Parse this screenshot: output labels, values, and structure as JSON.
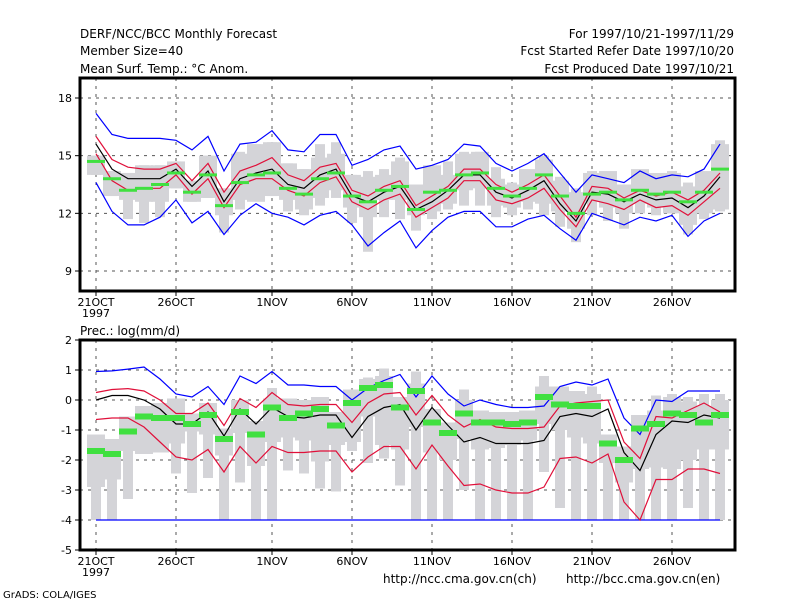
{
  "header": {
    "title": "DERF/NCC/BCC Monthly Forecast",
    "member_size": "Member Size=40",
    "variable": "Mean Surf. Temp.: °C Anom.",
    "period": "For 1997/10/21-1997/11/29",
    "started": "Fcst Started Refer Date 1997/10/20",
    "produced": "Fcst Produced Date 1997/10/21"
  },
  "footer": {
    "url_ch": "http://ncc.cma.gov.cn(ch)",
    "url_en": "http://bcc.cma.gov.cn(en)",
    "credit": "GrADS: COLA/IGES"
  },
  "colors": {
    "envelope": "#0000ff",
    "spread": "#e0103a",
    "mean": "#000000",
    "median": "#40e040",
    "box": "#d4d4d8",
    "grid": "#555555"
  },
  "chart_data": [
    {
      "type": "line",
      "title": "Mean Surf. Temp.: °C Anom.",
      "xlabel": "",
      "ylabel": "°C",
      "ylim": [
        8,
        19
      ],
      "yticks": [
        9,
        12,
        15,
        18
      ],
      "xtick_labels": [
        "21OCT",
        "26OCT",
        "1NOV",
        "6NOV",
        "11NOV",
        "16NOV",
        "21NOV",
        "26NOV"
      ],
      "xtick_days": [
        0,
        5,
        11,
        16,
        21,
        26,
        31,
        36
      ],
      "year_label": "1997",
      "grid": true,
      "days": 40,
      "series": [
        {
          "name": "max",
          "color_key": "envelope",
          "values": [
            17.2,
            16.1,
            15.9,
            15.9,
            15.9,
            15.8,
            15.3,
            16.0,
            14.2,
            15.6,
            15.7,
            16.3,
            15.3,
            15.2,
            16.1,
            16.1,
            14.5,
            14.8,
            15.3,
            15.5,
            14.3,
            14.5,
            14.8,
            15.6,
            15.5,
            14.6,
            14.2,
            14.6,
            15.1,
            14.1,
            13.1,
            14.0,
            13.8,
            13.6,
            14.2,
            13.8,
            14.0,
            13.9,
            14.3,
            15.6
          ]
        },
        {
          "name": "mean_plus_sd",
          "color_key": "spread",
          "values": [
            16.0,
            14.8,
            14.4,
            14.3,
            14.3,
            14.6,
            13.7,
            14.6,
            13.1,
            14.2,
            14.5,
            14.9,
            14.0,
            13.7,
            14.4,
            14.6,
            13.2,
            12.9,
            13.4,
            13.7,
            12.4,
            12.9,
            13.4,
            14.3,
            14.3,
            13.5,
            13.1,
            13.5,
            14.0,
            12.9,
            11.8,
            13.4,
            13.3,
            12.8,
            13.2,
            12.9,
            13.1,
            12.7,
            13.2,
            14.1
          ]
        },
        {
          "name": "mean",
          "color_key": "mean",
          "values": [
            15.6,
            14.3,
            13.8,
            13.8,
            13.8,
            14.3,
            13.4,
            14.2,
            12.6,
            13.8,
            14.1,
            14.3,
            13.5,
            13.3,
            14.0,
            14.3,
            12.9,
            12.6,
            13.1,
            13.4,
            12.2,
            12.6,
            13.2,
            14.0,
            14.0,
            13.1,
            12.8,
            13.2,
            13.7,
            12.5,
            11.6,
            13.1,
            13.0,
            12.6,
            13.0,
            12.7,
            12.8,
            12.3,
            12.9,
            13.9
          ]
        },
        {
          "name": "mean_minus_sd",
          "color_key": "spread",
          "values": [
            15.1,
            13.7,
            13.2,
            13.3,
            13.3,
            14.0,
            13.0,
            13.8,
            12.3,
            13.5,
            13.8,
            13.8,
            13.2,
            12.9,
            13.6,
            13.9,
            12.6,
            12.2,
            12.7,
            13.0,
            11.8,
            12.3,
            12.8,
            13.7,
            13.7,
            12.7,
            12.5,
            12.8,
            13.3,
            12.2,
            11.3,
            12.7,
            12.5,
            12.2,
            12.7,
            12.3,
            12.4,
            11.9,
            12.6,
            13.3
          ]
        },
        {
          "name": "min",
          "color_key": "envelope",
          "values": [
            13.6,
            12.1,
            11.4,
            11.4,
            11.8,
            12.7,
            11.5,
            12.1,
            10.9,
            11.9,
            12.5,
            12.0,
            11.8,
            11.4,
            11.9,
            12.1,
            11.4,
            10.3,
            11.0,
            11.6,
            10.2,
            11.1,
            11.8,
            12.1,
            12.1,
            11.3,
            11.3,
            11.7,
            11.9,
            11.2,
            10.6,
            12.0,
            11.7,
            11.4,
            11.8,
            11.6,
            11.9,
            10.8,
            11.6,
            12.0
          ]
        },
        {
          "name": "median",
          "color_key": "median",
          "values": [
            14.7,
            13.8,
            13.2,
            13.3,
            13.5,
            14.1,
            13.1,
            14.0,
            12.4,
            13.6,
            14.0,
            14.1,
            13.3,
            13.0,
            13.8,
            14.1,
            12.9,
            12.6,
            13.2,
            13.4,
            12.2,
            13.1,
            13.2,
            14.0,
            14.1,
            13.3,
            12.9,
            13.3,
            14.0,
            12.9,
            12.0,
            13.0,
            13.1,
            12.7,
            13.2,
            13.0,
            13.1,
            12.6,
            13.1,
            14.3
          ]
        },
        {
          "name": "box_low",
          "color_key": "box",
          "values": [
            14.0,
            12.9,
            12.7,
            12.6,
            12.6,
            13.3,
            12.6,
            12.8,
            11.9,
            12.7,
            12.6,
            12.9,
            12.7,
            12.2,
            12.8,
            13.2,
            12.3,
            11.8,
            12.7,
            12.7,
            11.9,
            12.1,
            12.5,
            13.2,
            13.3,
            12.4,
            12.3,
            12.6,
            12.5,
            12.1,
            11.2,
            12.6,
            12.3,
            12.0,
            12.5,
            12.3,
            12.0,
            11.4,
            12.0,
            12.2
          ]
        },
        {
          "name": "box_high",
          "color_key": "box",
          "values": [
            15.0,
            14.2,
            14.1,
            14.5,
            14.5,
            14.7,
            13.7,
            15.0,
            13.3,
            15.1,
            15.6,
            15.7,
            14.6,
            14.3,
            14.9,
            15.1,
            14.0,
            13.9,
            14.0,
            14.7,
            13.5,
            14.5,
            14.0,
            15.1,
            15.2,
            13.8,
            13.5,
            14.3,
            14.8,
            13.7,
            13.1,
            14.1,
            14.2,
            13.5,
            14.3,
            14.1,
            14.1,
            13.4,
            14.2,
            15.6
          ]
        },
        {
          "name": "whisker_low",
          "color_key": "box",
          "values": [
            14.0,
            12.9,
            11.7,
            11.5,
            11.8,
            13.3,
            12.6,
            12.8,
            11.0,
            12.2,
            12.9,
            12.9,
            12.1,
            11.9,
            12.4,
            12.8,
            11.5,
            10.0,
            11.8,
            11.7,
            11.1,
            11.7,
            12.2,
            12.4,
            12.4,
            11.8,
            11.9,
            12.2,
            11.9,
            11.3,
            10.5,
            11.9,
            11.6,
            11.2,
            12.0,
            11.9,
            12.0,
            10.9,
            11.7,
            12.1
          ]
        },
        {
          "name": "whisker_high",
          "color_key": "box",
          "values": [
            15.0,
            14.2,
            14.1,
            14.5,
            14.5,
            14.7,
            13.7,
            15.0,
            13.3,
            15.2,
            15.6,
            15.7,
            14.6,
            14.3,
            15.6,
            15.7,
            14.0,
            14.2,
            14.3,
            14.9,
            13.5,
            14.0,
            14.7,
            15.2,
            15.2,
            14.4,
            13.6,
            14.2,
            15.0,
            13.9,
            13.3,
            14.2,
            14.1,
            13.5,
            14.2,
            14.0,
            14.2,
            13.6,
            13.9,
            15.8
          ]
        }
      ]
    },
    {
      "type": "line",
      "title": "Prec.: log(mm/d)",
      "xlabel": "",
      "ylabel": "log(mm/d)",
      "ylim": [
        -5,
        2
      ],
      "yticks": [
        -5,
        -4,
        -3,
        -2,
        -1,
        0,
        1,
        2
      ],
      "xtick_labels": [
        "21OCT",
        "26OCT",
        "1NOV",
        "6NOV",
        "11NOV",
        "16NOV",
        "21NOV",
        "26NOV"
      ],
      "xtick_days": [
        0,
        5,
        11,
        16,
        21,
        26,
        31,
        36
      ],
      "year_label": "1997",
      "grid": true,
      "days": 40,
      "series": [
        {
          "name": "max",
          "color_key": "envelope",
          "values": [
            0.95,
            0.97,
            1.03,
            1.1,
            0.7,
            0.2,
            0.1,
            0.45,
            -0.15,
            0.8,
            0.55,
            0.95,
            0.5,
            0.5,
            0.45,
            0.45,
            0.0,
            0.4,
            0.65,
            0.85,
            0.1,
            0.8,
            0.2,
            -0.2,
            0.0,
            -0.15,
            -0.25,
            -0.25,
            -0.2,
            0.45,
            0.6,
            0.5,
            0.7,
            -0.6,
            -1.15,
            0.0,
            -0.05,
            0.3,
            0.3,
            0.3
          ]
        },
        {
          "name": "mean_plus_sd",
          "color_key": "spread",
          "values": [
            0.25,
            0.35,
            0.38,
            0.3,
            0.0,
            -0.45,
            -0.45,
            -0.1,
            -0.85,
            0.05,
            -0.25,
            0.25,
            -0.15,
            -0.2,
            -0.15,
            -0.15,
            -0.75,
            -0.1,
            0.2,
            0.25,
            -0.5,
            0.15,
            -0.5,
            -0.9,
            -0.65,
            -0.9,
            -0.95,
            -0.95,
            -0.9,
            -0.2,
            -0.1,
            -0.05,
            0.0,
            -1.4,
            -1.95,
            -0.55,
            -0.6,
            -0.35,
            -0.1,
            -0.4
          ]
        },
        {
          "name": "mean",
          "color_key": "mean",
          "values": [
            0.0,
            0.15,
            0.15,
            0.0,
            -0.3,
            -0.8,
            -0.8,
            -0.4,
            -1.2,
            -0.3,
            -0.8,
            -0.25,
            -0.55,
            -0.6,
            -0.5,
            -0.5,
            -1.25,
            -0.55,
            -0.25,
            -0.15,
            -1.0,
            -0.25,
            -0.85,
            -1.4,
            -1.25,
            -1.45,
            -1.45,
            -1.45,
            -1.35,
            -0.55,
            -0.45,
            -0.55,
            -0.3,
            -1.75,
            -2.35,
            -1.15,
            -0.7,
            -0.75,
            -0.5,
            -0.6
          ]
        },
        {
          "name": "mean_minus_sd",
          "color_key": "spread",
          "values": [
            -0.65,
            -0.6,
            -0.6,
            -0.9,
            -1.4,
            -1.9,
            -2.0,
            -1.65,
            -2.4,
            -1.55,
            -2.1,
            -1.55,
            -1.75,
            -1.75,
            -1.7,
            -1.7,
            -2.4,
            -1.9,
            -1.55,
            -1.55,
            -2.3,
            -1.5,
            -2.2,
            -2.85,
            -2.8,
            -3.0,
            -3.1,
            -3.1,
            -2.9,
            -1.95,
            -1.9,
            -2.1,
            -1.8,
            -3.4,
            -4.0,
            -2.65,
            -2.65,
            -2.3,
            -2.3,
            -2.45
          ]
        },
        {
          "name": "min",
          "color_key": "envelope",
          "values": [
            -4.0,
            -4.0,
            -4.0,
            -4.0,
            -4.0,
            -4.0,
            -4.0,
            -4.0,
            -4.0,
            -4.0,
            -4.0,
            -4.0,
            -4.0,
            -4.0,
            -4.0,
            -4.0,
            -4.0,
            -4.0,
            -4.0,
            -4.0,
            -4.0,
            -4.0,
            -4.0,
            -4.0,
            -4.0,
            -4.0,
            -4.0,
            -4.0,
            -4.0,
            -4.0,
            -4.0,
            -4.0,
            -4.0,
            -4.0,
            -4.0,
            -4.0,
            -4.0,
            -4.0,
            -4.0,
            -4.0
          ]
        },
        {
          "name": "median",
          "color_key": "median",
          "values": [
            -1.7,
            -1.8,
            -1.05,
            -0.55,
            -0.6,
            -0.6,
            -0.8,
            -0.5,
            -1.3,
            -0.4,
            -1.15,
            -0.25,
            -0.6,
            -0.45,
            -0.3,
            -0.85,
            -0.1,
            0.4,
            0.5,
            -0.25,
            0.3,
            -0.75,
            -1.1,
            -0.45,
            -0.75,
            -0.75,
            -0.8,
            -0.75,
            0.1,
            -0.15,
            -0.2,
            -0.2,
            -1.45,
            -2.0,
            -0.95,
            -0.8,
            -0.45,
            -0.5,
            -0.75,
            -0.5
          ]
        },
        {
          "name": "box_low",
          "color_key": "box",
          "values": [
            -2.9,
            -2.65,
            -1.7,
            -1.8,
            -1.75,
            -1.45,
            -1.05,
            -1.15,
            -1.85,
            -1.1,
            -2.2,
            -1.4,
            -1.25,
            -1.35,
            -2.05,
            -1.5,
            -1.4,
            -0.55,
            -1.5,
            -1.65,
            -0.9,
            -1.75,
            -2.0,
            -1.3,
            -1.65,
            -1.6,
            -1.5,
            -1.35,
            -0.8,
            -1.0,
            -1.25,
            -1.45,
            -2.1,
            -2.75,
            -2.3,
            -2.25,
            -2.3,
            -2.0,
            -1.65,
            -1.65
          ]
        },
        {
          "name": "box_high",
          "color_key": "box",
          "values": [
            -1.15,
            -1.3,
            -0.55,
            -0.2,
            -0.1,
            0.05,
            -0.45,
            -0.1,
            -0.95,
            0.0,
            -0.7,
            0.05,
            0.05,
            -0.0,
            0.1,
            -0.4,
            0.35,
            0.7,
            0.8,
            0.1,
            0.55,
            -0.3,
            -0.75,
            0.0,
            -0.35,
            -0.4,
            -0.4,
            -0.35,
            0.45,
            0.45,
            0.3,
            0.2,
            -1.15,
            -1.55,
            -0.5,
            -0.35,
            0.1,
            -0.05,
            -0.2,
            0.0
          ]
        },
        {
          "name": "whisker_low",
          "color_key": "box",
          "values": [
            -4.0,
            -4.0,
            -3.3,
            -1.8,
            -1.75,
            -2.45,
            -3.1,
            -2.6,
            -4.0,
            -2.75,
            -4.0,
            -4.0,
            -2.35,
            -2.45,
            -2.95,
            -3.05,
            -1.7,
            -2.1,
            -1.95,
            -2.85,
            -4.0,
            -4.0,
            -4.0,
            -3.0,
            -4.0,
            -4.0,
            -4.0,
            -4.0,
            -2.4,
            -3.6,
            -4.0,
            -4.0,
            -4.0,
            -4.0,
            -4.0,
            -4.0,
            -4.0,
            -3.6,
            -4.0,
            -4.0
          ]
        },
        {
          "name": "whisker_high",
          "color_key": "box",
          "values": [
            -1.15,
            -1.3,
            -0.55,
            -0.2,
            -0.1,
            0.05,
            -0.45,
            -0.1,
            -0.95,
            0.0,
            -0.7,
            0.4,
            0.05,
            0.0,
            0.1,
            -0.4,
            0.35,
            0.75,
            1.05,
            0.1,
            0.95,
            -0.3,
            -0.75,
            0.35,
            -0.35,
            -0.4,
            -0.4,
            -0.35,
            0.8,
            0.45,
            0.3,
            0.45,
            -1.15,
            -1.55,
            -0.5,
            0.15,
            0.2,
            0.1,
            0.2,
            0.2
          ]
        }
      ]
    }
  ]
}
